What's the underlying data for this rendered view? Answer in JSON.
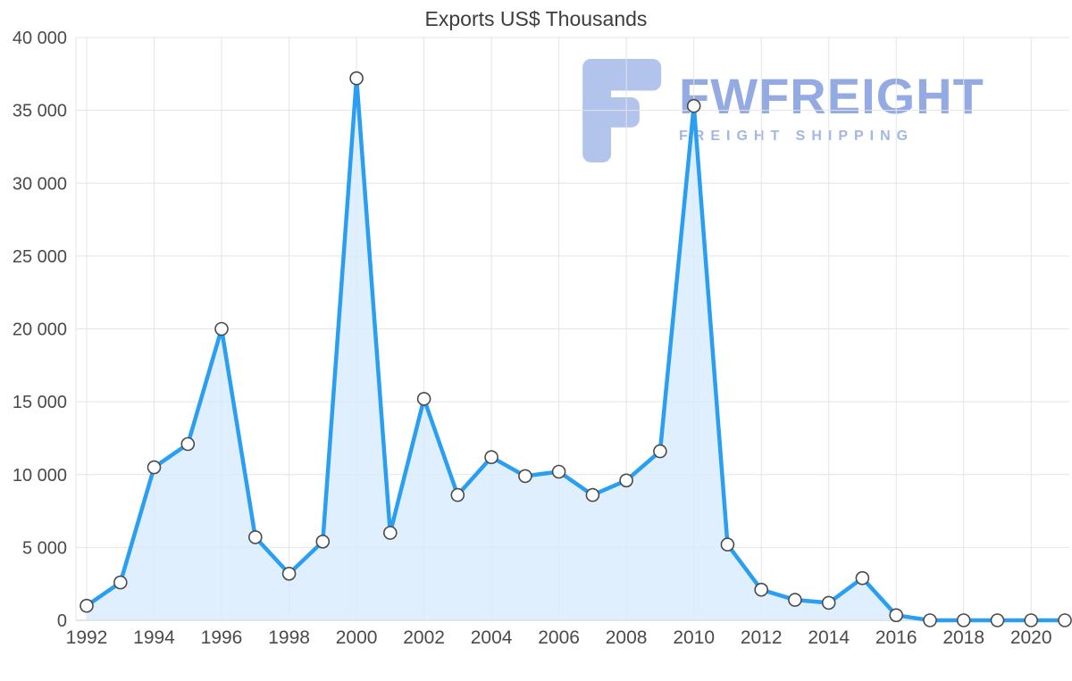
{
  "chart_data": {
    "type": "area",
    "title": "Exports US$ Thousands",
    "xlabel": "",
    "ylabel": "",
    "x": [
      1992,
      1993,
      1994,
      1995,
      1996,
      1997,
      1998,
      1999,
      2000,
      2001,
      2002,
      2003,
      2004,
      2005,
      2006,
      2007,
      2008,
      2009,
      2010,
      2011,
      2012,
      2013,
      2014,
      2015,
      2016,
      2017,
      2018,
      2019,
      2020,
      2021
    ],
    "values": [
      1000,
      2600,
      10500,
      12100,
      20000,
      5700,
      3200,
      5400,
      37200,
      6000,
      15200,
      8600,
      11200,
      9900,
      10200,
      8600,
      9600,
      11600,
      35300,
      5200,
      2100,
      1400,
      1200,
      2900,
      350,
      0,
      0,
      0,
      0,
      0
    ],
    "ylim": [
      0,
      40000
    ],
    "grid": true,
    "legend_position": "none",
    "marker": "circle",
    "y_tick_values": [
      0,
      5000,
      10000,
      15000,
      20000,
      25000,
      30000,
      35000,
      40000
    ],
    "y_tick_labels": [
      "0",
      "5 000",
      "10 000",
      "15 000",
      "20 000",
      "25 000",
      "30 000",
      "35 000",
      "40 000"
    ],
    "x_tick_values": [
      1992,
      1994,
      1996,
      1998,
      2000,
      2002,
      2004,
      2006,
      2008,
      2010,
      2012,
      2014,
      2016,
      2018,
      2020
    ],
    "x_tick_labels": [
      "1992",
      "1994",
      "1996",
      "1998",
      "2000",
      "2002",
      "2004",
      "2006",
      "2008",
      "2010",
      "2012",
      "2014",
      "2016",
      "2018",
      "2020"
    ],
    "colors": {
      "line": "#2a9ff1",
      "area": "#d7ebfc",
      "marker_fill": "#ffffff",
      "marker_stroke": "#4a4a4a",
      "grid": "#e4e4e4",
      "axis_line": "#c8c8c8",
      "axis_text": "#4a4a4a"
    }
  },
  "watermark": {
    "brand": "FWFREIGHT",
    "tagline": "FREIGHT SHIPPING",
    "color": "#94aae2",
    "logo_color": "#b2c3ec"
  }
}
